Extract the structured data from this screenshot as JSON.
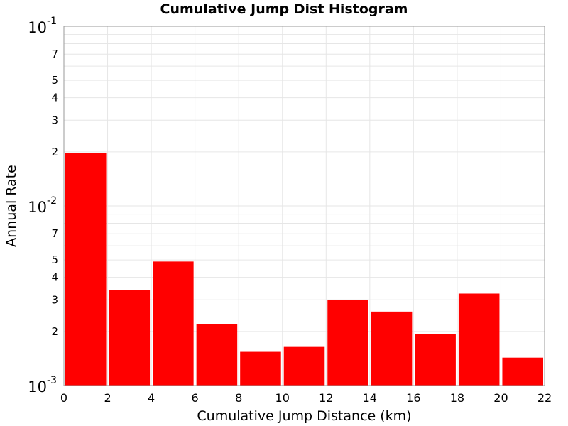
{
  "chart_data": {
    "type": "bar",
    "title": "Cumulative Jump Dist Histogram",
    "xlabel": "Cumulative Jump Distance (km)",
    "ylabel": "Annual Rate",
    "x_scale": "linear",
    "y_scale": "log",
    "xlim": [
      0,
      22
    ],
    "ylim": [
      0.001,
      0.1
    ],
    "x_ticks": [
      0,
      2,
      4,
      6,
      8,
      10,
      12,
      14,
      16,
      18,
      20,
      22
    ],
    "y_major_ticks": [
      {
        "value": 0.1,
        "base": "10",
        "exp": "-1"
      },
      {
        "value": 0.01,
        "base": "10",
        "exp": "-2"
      },
      {
        "value": 0.001,
        "base": "10",
        "exp": "-3"
      }
    ],
    "y_minor_labels": [
      {
        "value": 0.07,
        "label": "7"
      },
      {
        "value": 0.05,
        "label": "5"
      },
      {
        "value": 0.04,
        "label": "4"
      },
      {
        "value": 0.03,
        "label": "3"
      },
      {
        "value": 0.02,
        "label": "2"
      },
      {
        "value": 0.007,
        "label": "7"
      },
      {
        "value": 0.005,
        "label": "5"
      },
      {
        "value": 0.004,
        "label": "4"
      },
      {
        "value": 0.003,
        "label": "3"
      },
      {
        "value": 0.002,
        "label": "2"
      }
    ],
    "grid": true,
    "bar_color": "#ff0000",
    "bars": [
      {
        "x_start": 0,
        "x_end": 2,
        "value": 0.0197
      },
      {
        "x_start": 2,
        "x_end": 4,
        "value": 0.0034
      },
      {
        "x_start": 4,
        "x_end": 6,
        "value": 0.0049
      },
      {
        "x_start": 6,
        "x_end": 8,
        "value": 0.0022
      },
      {
        "x_start": 8,
        "x_end": 10,
        "value": 0.00154
      },
      {
        "x_start": 10,
        "x_end": 12,
        "value": 0.00164
      },
      {
        "x_start": 12,
        "x_end": 14,
        "value": 0.003
      },
      {
        "x_start": 14,
        "x_end": 16,
        "value": 0.00258
      },
      {
        "x_start": 16,
        "x_end": 18,
        "value": 0.00193
      },
      {
        "x_start": 18,
        "x_end": 20,
        "value": 0.00325
      },
      {
        "x_start": 20,
        "x_end": 22,
        "value": 0.00143
      }
    ]
  }
}
